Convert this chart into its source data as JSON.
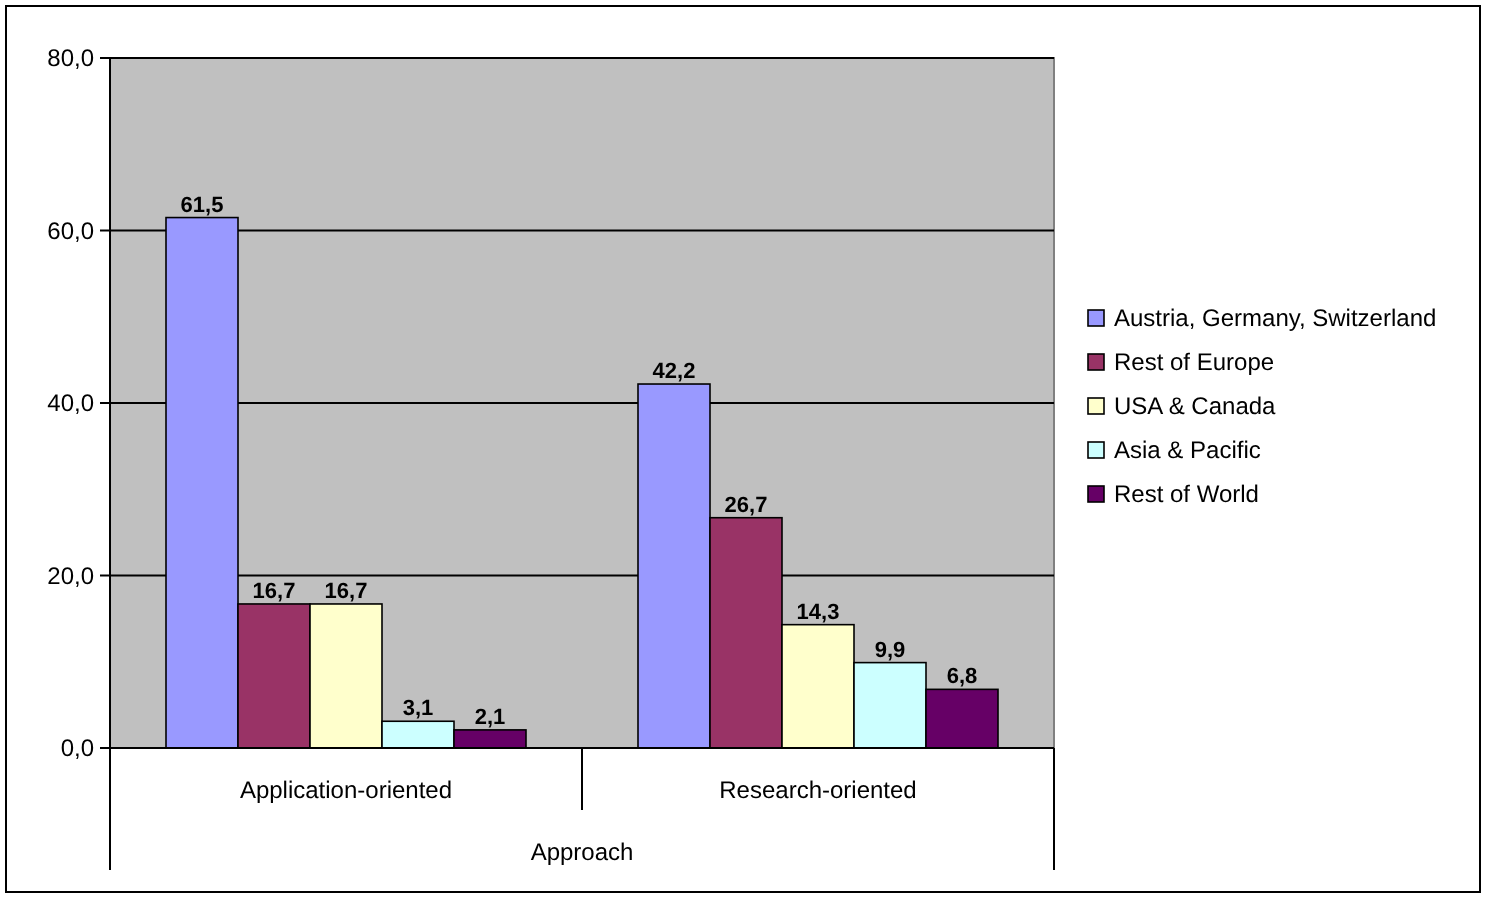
{
  "chart_data": {
    "type": "bar",
    "xlabel": "Approach",
    "categories": [
      "Application-oriented",
      "Research-oriented"
    ],
    "series": [
      {
        "name": "Austria, Germany, Switzerland",
        "color": "#9999ff",
        "values": [
          61.5,
          42.2
        ],
        "value_labels": [
          "61,5",
          "42,2"
        ]
      },
      {
        "name": "Rest of Europe",
        "color": "#993366",
        "values": [
          16.7,
          26.7
        ],
        "value_labels": [
          "16,7",
          "26,7"
        ]
      },
      {
        "name": "USA & Canada",
        "color": "#ffffcc",
        "values": [
          16.7,
          14.3
        ],
        "value_labels": [
          "16,7",
          "14,3"
        ]
      },
      {
        "name": "Asia & Pacific",
        "color": "#ccffff",
        "values": [
          3.1,
          9.9
        ],
        "value_labels": [
          "3,1",
          "9,9"
        ]
      },
      {
        "name": "Rest of World",
        "color": "#660066",
        "values": [
          2.1,
          6.8
        ],
        "value_labels": [
          "2,1",
          "6,8"
        ]
      }
    ],
    "ylim": [
      0,
      80
    ],
    "yticks": [
      {
        "value": 0,
        "label": "0,0"
      },
      {
        "value": 20,
        "label": "20,0"
      },
      {
        "value": 40,
        "label": "40,0"
      },
      {
        "value": 60,
        "label": "60,0"
      },
      {
        "value": 80,
        "label": "80,0"
      }
    ],
    "grid": "y",
    "legend": "right"
  }
}
